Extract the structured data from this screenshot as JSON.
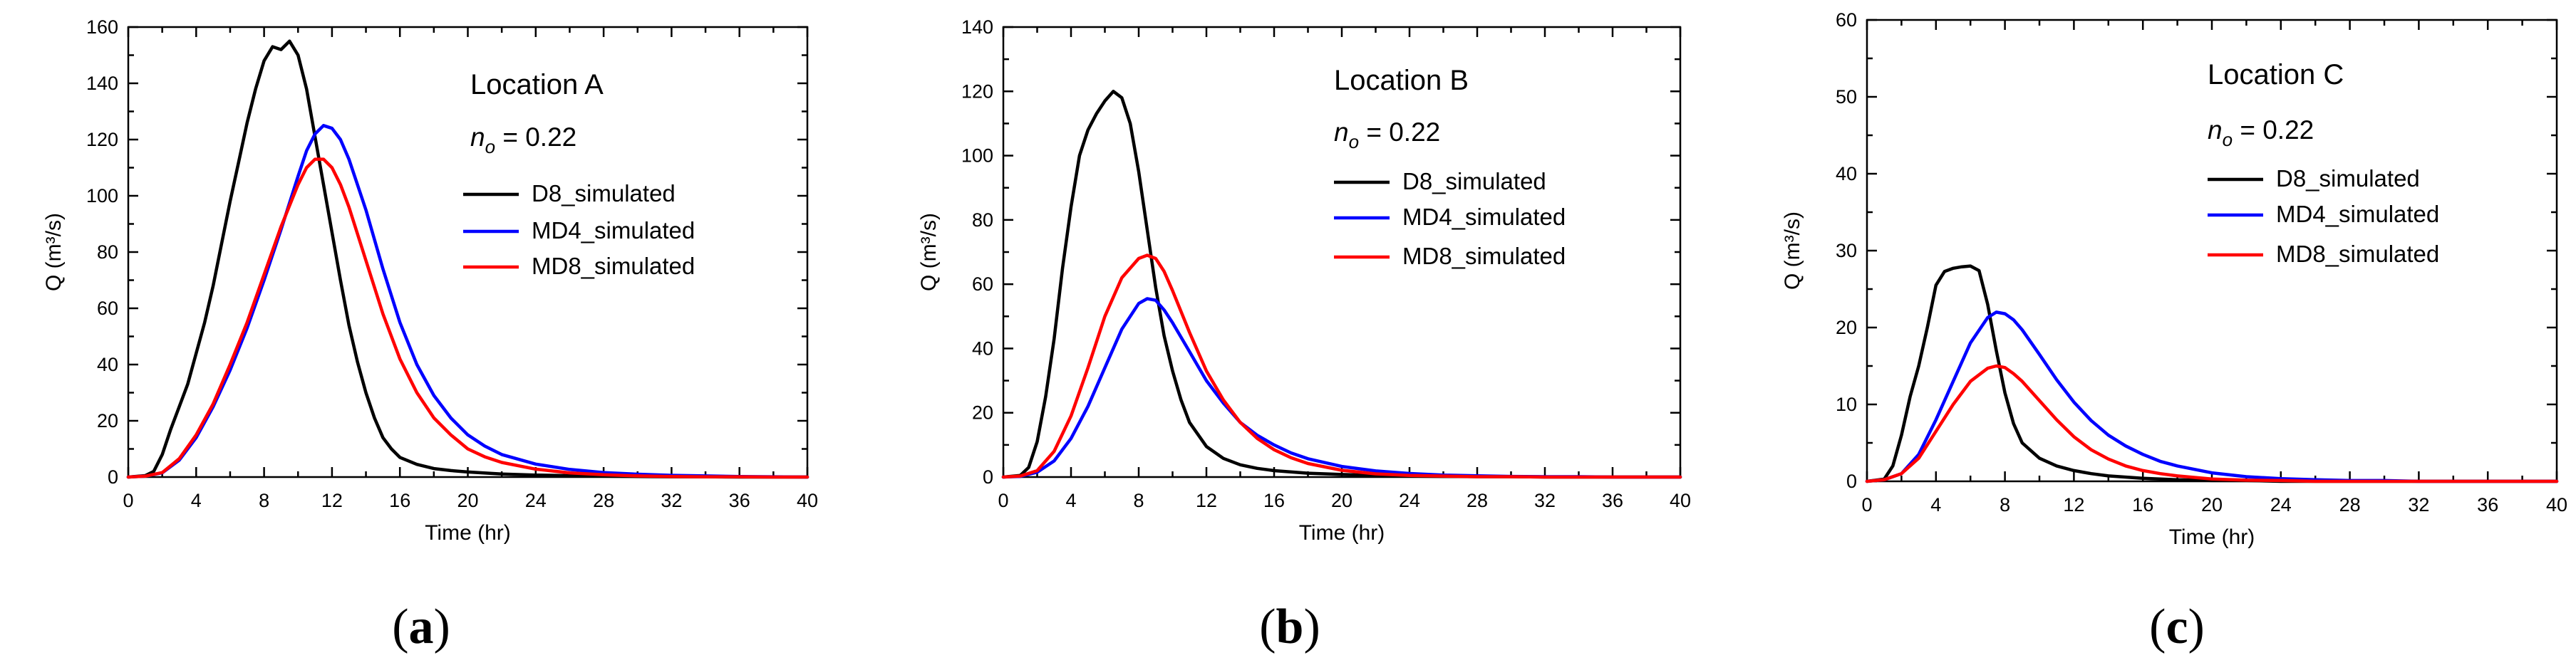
{
  "figure": {
    "panels": [
      {
        "label_open": "(",
        "label_letter": "a",
        "label_close": ")"
      },
      {
        "label_open": "(",
        "label_letter": "b",
        "label_close": ")"
      },
      {
        "label_open": "(",
        "label_letter": "c",
        "label_close": ")"
      }
    ]
  },
  "chart_data": [
    {
      "type": "line",
      "title": "Location A",
      "param_symbol": "n",
      "param_subscript": "o",
      "param_value": " = 0.22",
      "xlabel": "Time (hr)",
      "ylabel": "Q (m³/s)",
      "xlim": [
        0,
        40
      ],
      "ylim": [
        0,
        160
      ],
      "xticks": [
        0,
        4,
        8,
        12,
        16,
        20,
        24,
        28,
        32,
        36,
        40
      ],
      "yticks": [
        0,
        20,
        40,
        60,
        80,
        100,
        120,
        140,
        160
      ],
      "series": [
        {
          "name": "D8_simulated",
          "color": "#000000",
          "x": [
            0,
            1,
            1.5,
            2,
            2.5,
            3,
            3.5,
            4,
            4.5,
            5,
            5.5,
            6,
            6.5,
            7,
            7.5,
            8,
            8.5,
            9,
            9.5,
            10,
            10.5,
            11,
            11.5,
            12,
            12.5,
            13,
            13.5,
            14,
            14.5,
            15,
            15.5,
            16,
            17,
            18,
            19,
            20,
            22,
            24,
            26,
            28,
            30,
            32,
            34,
            36,
            38,
            40
          ],
          "y": [
            0,
            0.5,
            2,
            8,
            17,
            25,
            33,
            44,
            55,
            68,
            83,
            98,
            112,
            126,
            138,
            148,
            153,
            152,
            155,
            150,
            138,
            121,
            104,
            87,
            70,
            54,
            41,
            30,
            21,
            14,
            10,
            7,
            4.5,
            3,
            2.3,
            1.8,
            1.1,
            0.7,
            0.5,
            0.3,
            0.2,
            0.1,
            0.1,
            0,
            0,
            0
          ]
        },
        {
          "name": "MD4_simulated",
          "color": "#0000ff",
          "x": [
            0,
            1,
            2,
            3,
            4,
            5,
            6,
            7,
            8,
            9,
            10,
            10.5,
            11,
            11.5,
            12,
            12.5,
            13,
            14,
            15,
            16,
            17,
            18,
            19,
            20,
            21,
            22,
            24,
            26,
            28,
            30,
            32,
            34,
            36,
            38,
            40
          ],
          "y": [
            0,
            0.3,
            1.5,
            6,
            14,
            25,
            38,
            53,
            70,
            88,
            107,
            116,
            122,
            125,
            124,
            120,
            113,
            95,
            74,
            55,
            40,
            29,
            21,
            15,
            11,
            8,
            4.6,
            2.7,
            1.6,
            1,
            0.6,
            0.4,
            0.2,
            0.1,
            0
          ]
        },
        {
          "name": "MD8_simulated",
          "color": "#ff0000",
          "x": [
            0,
            1,
            2,
            3,
            4,
            5,
            6,
            7,
            8,
            9,
            10,
            10.5,
            11,
            11.5,
            12,
            12.5,
            13,
            14,
            15,
            16,
            17,
            18,
            19,
            20,
            21,
            22,
            24,
            26,
            28,
            30,
            32,
            34,
            36,
            38,
            40
          ],
          "y": [
            0,
            0.3,
            1.6,
            6.5,
            15,
            26,
            40,
            55,
            72,
            89,
            104,
            110,
            113,
            113,
            110,
            104,
            96,
            77,
            58,
            42,
            30,
            21,
            15,
            10,
            7.2,
            5.2,
            2.8,
            1.5,
            0.8,
            0.4,
            0.2,
            0.1,
            0.1,
            0,
            0
          ]
        }
      ]
    },
    {
      "type": "line",
      "title": "Location B",
      "param_symbol": "n",
      "param_subscript": "o",
      "param_value": " = 0.22",
      "xlabel": "Time (hr)",
      "ylabel": "Q (m³/s)",
      "xlim": [
        0,
        40
      ],
      "ylim": [
        0,
        140
      ],
      "xticks": [
        0,
        4,
        8,
        12,
        16,
        20,
        24,
        28,
        32,
        36,
        40
      ],
      "yticks": [
        0,
        20,
        40,
        60,
        80,
        100,
        120,
        140
      ],
      "series": [
        {
          "name": "D8_simulated",
          "color": "#000000",
          "x": [
            0,
            1,
            1.5,
            2,
            2.5,
            3,
            3.5,
            4,
            4.5,
            5,
            5.5,
            6,
            6.5,
            7,
            7.5,
            8,
            8.5,
            9,
            9.5,
            10,
            10.5,
            11,
            12,
            13,
            14,
            15,
            16,
            18,
            20,
            22,
            24,
            26,
            28,
            30,
            32,
            34,
            36,
            38,
            40
          ],
          "y": [
            0,
            0.5,
            3,
            11,
            25,
            43,
            65,
            84,
            100,
            108,
            113,
            117,
            120,
            118,
            110,
            95,
            77,
            59,
            44,
            33,
            24,
            17,
            9.5,
            5.8,
            3.8,
            2.7,
            2,
            1.2,
            0.8,
            0.5,
            0.3,
            0.2,
            0.1,
            0.1,
            0,
            0,
            0,
            0,
            0
          ]
        },
        {
          "name": "MD4_simulated",
          "color": "#0000ff",
          "x": [
            0,
            1,
            2,
            3,
            4,
            5,
            6,
            7,
            8,
            8.5,
            9,
            9.5,
            10,
            11,
            12,
            13,
            14,
            15,
            16,
            17,
            18,
            20,
            22,
            24,
            26,
            28,
            30,
            32,
            34,
            36,
            38,
            40
          ],
          "y": [
            0,
            0.2,
            1.5,
            5,
            12,
            22,
            34,
            46,
            54,
            55.5,
            55,
            52,
            48,
            39,
            30,
            23,
            17,
            13,
            10,
            7.5,
            5.7,
            3.3,
            1.9,
            1.1,
            0.6,
            0.4,
            0.2,
            0.1,
            0.1,
            0,
            0,
            0
          ]
        },
        {
          "name": "MD8_simulated",
          "color": "#ff0000",
          "x": [
            0,
            1,
            2,
            3,
            4,
            5,
            6,
            7,
            8,
            8.5,
            9,
            9.5,
            10,
            11,
            12,
            13,
            14,
            15,
            16,
            17,
            18,
            20,
            22,
            24,
            26,
            28,
            30,
            32,
            34,
            36,
            38,
            40
          ],
          "y": [
            0,
            0.3,
            2,
            8,
            19,
            34,
            50,
            62,
            68,
            69,
            68,
            64,
            58,
            45,
            33,
            24,
            17,
            12,
            8.5,
            6,
            4.2,
            2.1,
            1,
            0.5,
            0.3,
            0.1,
            0.1,
            0,
            0,
            0,
            0,
            0
          ]
        }
      ]
    },
    {
      "type": "line",
      "title": "Location C",
      "param_symbol": "n",
      "param_subscript": "o",
      "param_value": " = 0.22",
      "xlabel": "Time (hr)",
      "ylabel": "Q (m³/s)",
      "xlim": [
        0,
        40
      ],
      "ylim": [
        0,
        60
      ],
      "xticks": [
        0,
        4,
        8,
        12,
        16,
        20,
        24,
        28,
        32,
        36,
        40
      ],
      "yticks": [
        0,
        10,
        20,
        30,
        40,
        50,
        60
      ],
      "series": [
        {
          "name": "D8_simulated",
          "color": "#000000",
          "x": [
            0,
            1,
            1.5,
            2,
            2.5,
            3,
            3.5,
            4,
            4.5,
            5,
            5.5,
            6,
            6.5,
            7,
            7.5,
            8,
            8.5,
            9,
            10,
            11,
            12,
            13,
            14,
            16,
            18,
            20,
            22,
            24,
            26,
            28,
            30,
            32,
            34,
            36,
            38,
            40
          ],
          "y": [
            0,
            0.3,
            2,
            6,
            11,
            15,
            20,
            25.5,
            27.3,
            27.7,
            27.9,
            28,
            27.4,
            23,
            17,
            11.5,
            7.5,
            5,
            3,
            2,
            1.4,
            1,
            0.7,
            0.4,
            0.2,
            0.1,
            0.1,
            0,
            0,
            0,
            0,
            0,
            0,
            0,
            0,
            0
          ]
        },
        {
          "name": "MD4_simulated",
          "color": "#0000ff",
          "x": [
            0,
            1,
            2,
            3,
            4,
            5,
            6,
            7,
            7.5,
            8,
            8.5,
            9,
            10,
            11,
            12,
            13,
            14,
            15,
            16,
            17,
            18,
            20,
            22,
            24,
            26,
            28,
            30,
            32,
            34,
            36,
            38,
            40
          ],
          "y": [
            0,
            0.2,
            1,
            3.5,
            8,
            13,
            18,
            21.3,
            22,
            21.8,
            21,
            19.7,
            16.5,
            13.2,
            10.3,
            7.9,
            6,
            4.6,
            3.5,
            2.6,
            2,
            1.1,
            0.6,
            0.35,
            0.2,
            0.1,
            0.1,
            0,
            0,
            0,
            0,
            0
          ]
        },
        {
          "name": "MD8_simulated",
          "color": "#ff0000",
          "x": [
            0,
            1,
            2,
            3,
            4,
            5,
            6,
            7,
            7.5,
            8,
            8.5,
            9,
            10,
            11,
            12,
            13,
            14,
            15,
            16,
            17,
            18,
            20,
            22,
            24,
            26,
            28,
            30,
            32,
            34,
            36,
            38,
            40
          ],
          "y": [
            0,
            0.2,
            1,
            3,
            6.5,
            10,
            13,
            14.7,
            15,
            14.8,
            14,
            13,
            10.5,
            8,
            5.8,
            4.1,
            2.9,
            2,
            1.4,
            1,
            0.7,
            0.3,
            0.15,
            0.1,
            0,
            0,
            0,
            0,
            0,
            0,
            0,
            0
          ]
        }
      ]
    }
  ]
}
